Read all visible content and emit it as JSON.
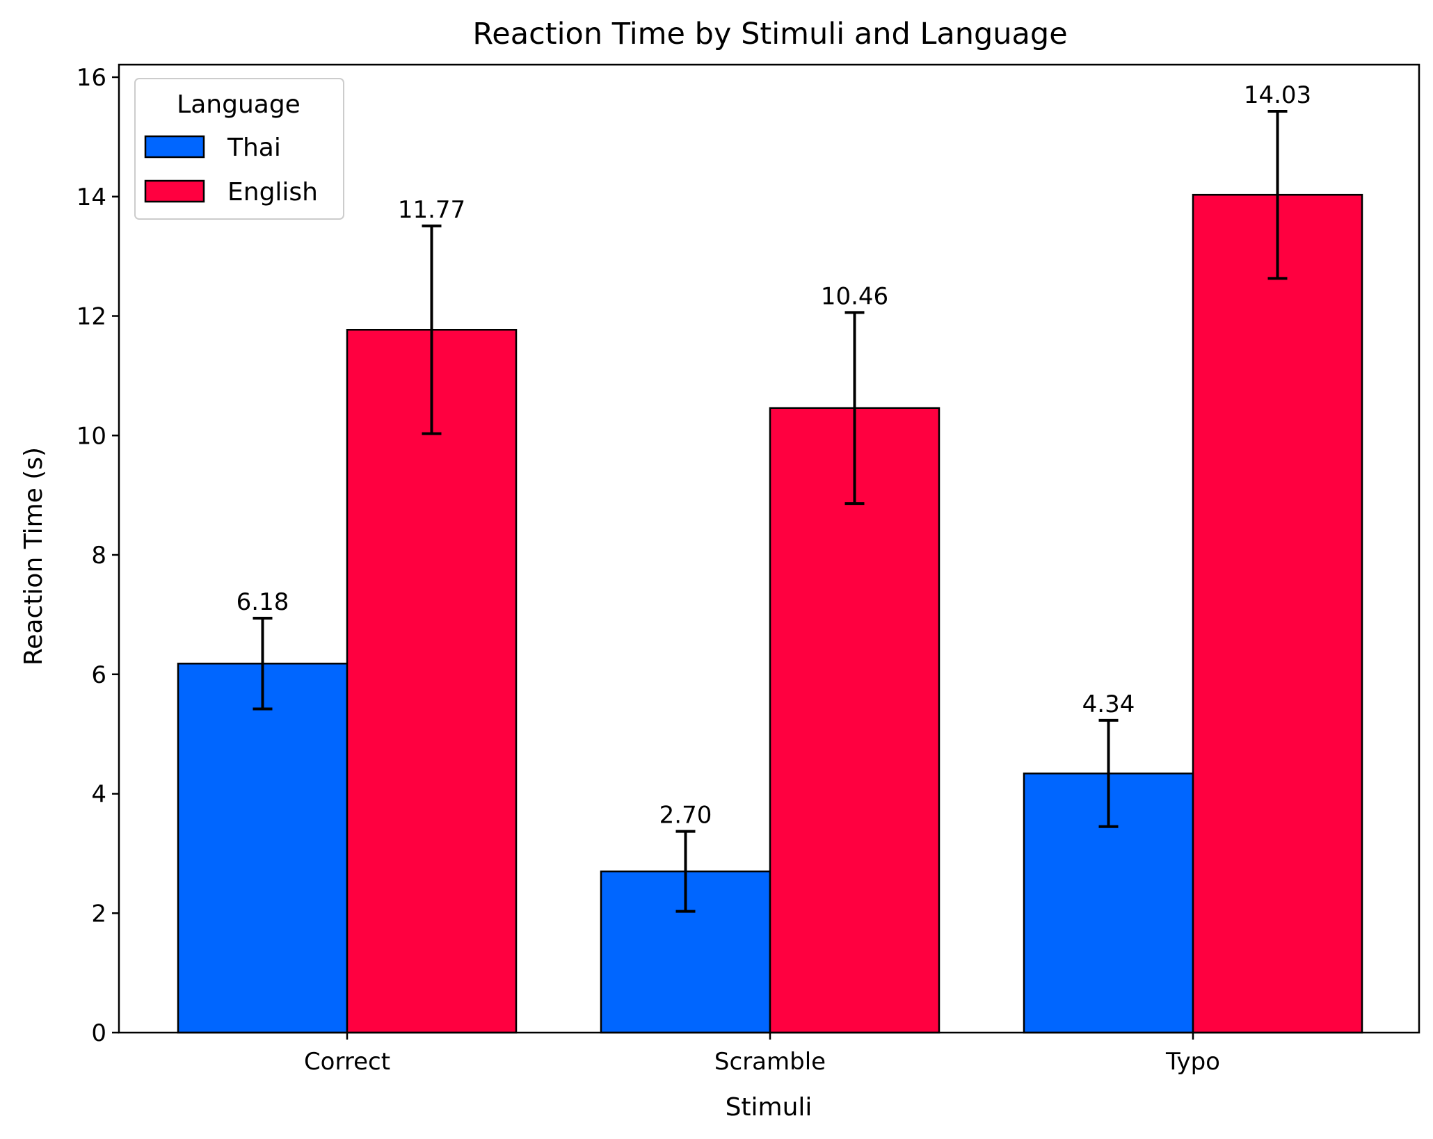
{
  "chart_data": {
    "type": "bar",
    "title": "Reaction Time by Stimuli and Language",
    "xlabel": "Stimuli",
    "ylabel": "Reaction Time (s)",
    "categories": [
      "Correct",
      "Scramble",
      "Typo"
    ],
    "ylim": [
      0,
      16.2
    ],
    "yticks": [
      0,
      2,
      4,
      6,
      8,
      10,
      12,
      14,
      16
    ],
    "grid": false,
    "legend": {
      "title": "Language",
      "placement": "top-left"
    },
    "series": [
      {
        "name": "Thai",
        "color": "#0066ff",
        "values": [
          6.18,
          2.7,
          4.34
        ],
        "labels": [
          "6.18",
          "2.70",
          "4.34"
        ],
        "error": [
          0.76,
          0.67,
          0.89
        ]
      },
      {
        "name": "English",
        "color": "#ff0040",
        "values": [
          11.77,
          10.46,
          14.03
        ],
        "labels": [
          "11.77",
          "10.46",
          "14.03"
        ],
        "error": [
          1.74,
          1.6,
          1.4
        ]
      }
    ]
  }
}
